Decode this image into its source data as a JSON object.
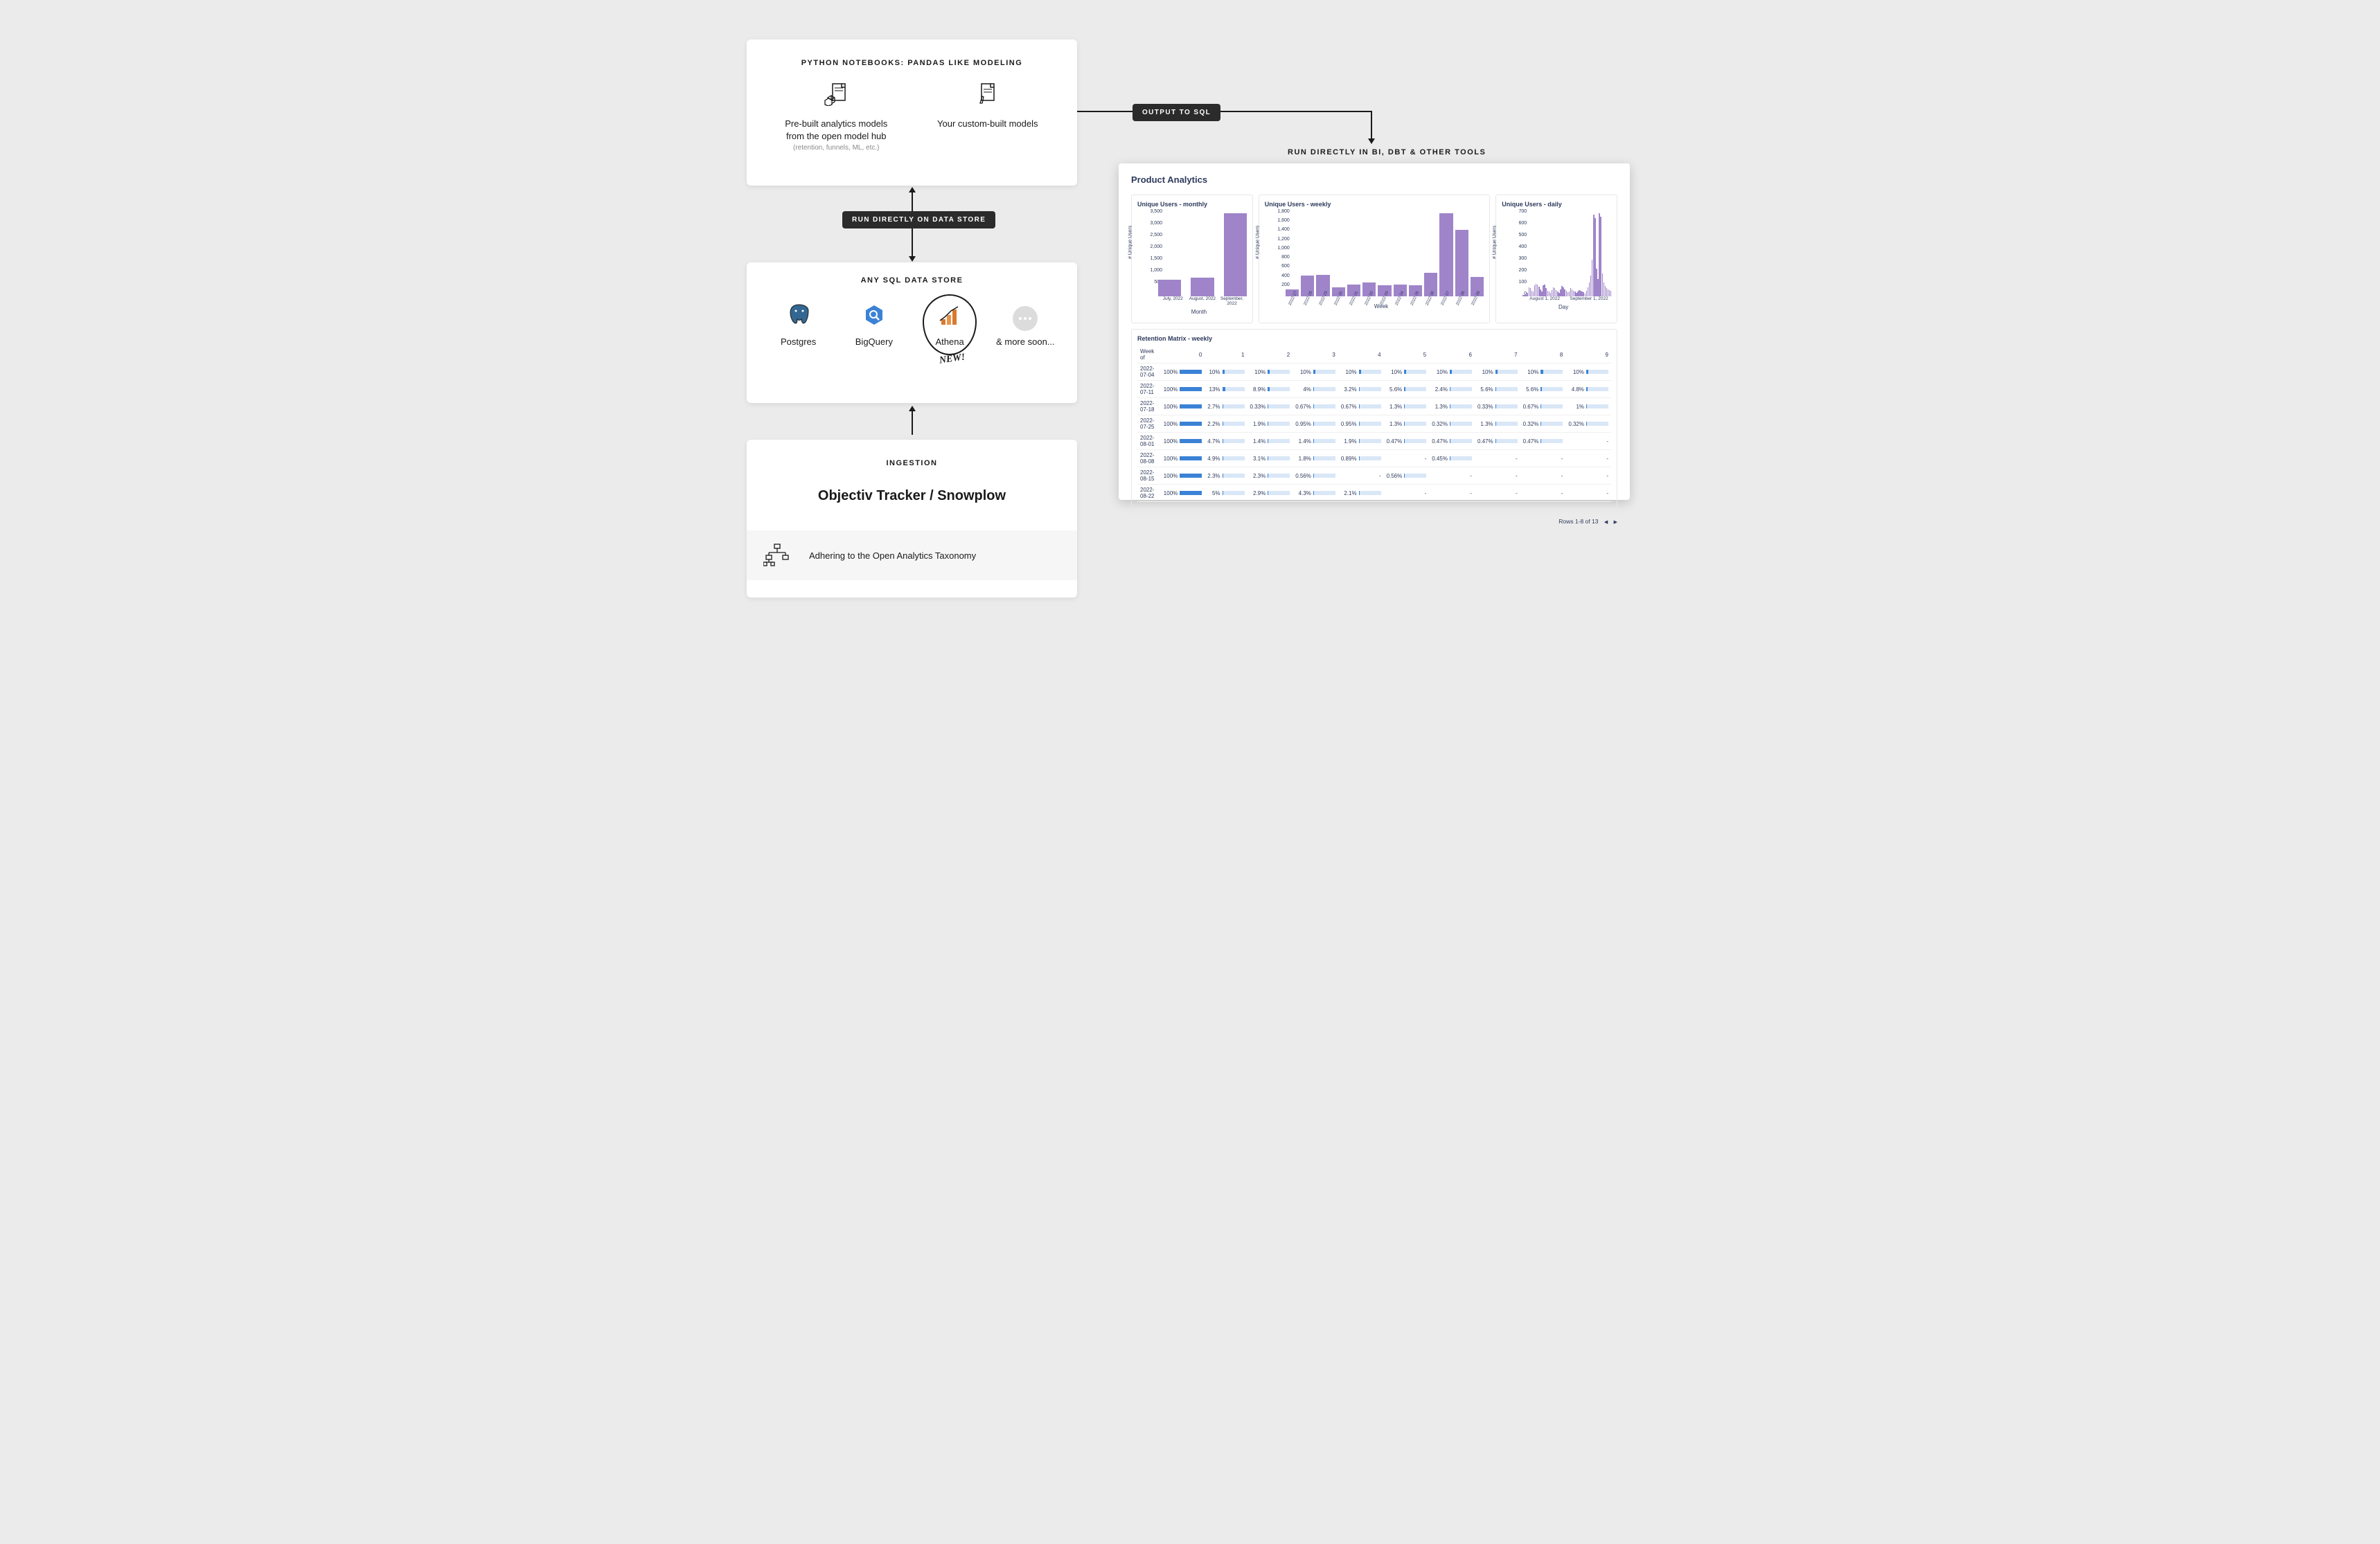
{
  "colors": {
    "bg": "#ebebeb",
    "card": "#ffffff",
    "text": "#1a1a1a",
    "muted": "#8a8a8a",
    "pill_bg": "#2b2b2b",
    "dash_text": "#2e3a5c",
    "bar_purple": "#9f84c9",
    "ret_bg": "#d9e7f7",
    "ret_fg": "#3b82d6",
    "border": "#e7e7e7",
    "athena_orange": "#d97a2e",
    "bq_blue": "#3b82d6",
    "pg_blue": "#336791"
  },
  "labels": {
    "output_to_sql": "OUTPUT TO SQL",
    "run_on_store": "RUN DIRECTLY ON DATA STORE",
    "run_in_bi": "RUN DIRECTLY IN BI, DBT & OTHER TOOLS"
  },
  "notebooks": {
    "title": "PYTHON NOTEBOOKS: PANDAS LIKE MODELING",
    "prebuilt_line1": "Pre-built analytics models",
    "prebuilt_line2": "from the open model hub",
    "prebuilt_sub": "(retention, funnels, ML, etc.)",
    "custom": "Your custom-built models"
  },
  "stores": {
    "title": "ANY SQL DATA STORE",
    "items": [
      "Postgres",
      "BigQuery",
      "Athena",
      "& more soon..."
    ],
    "new_badge": "NEW!"
  },
  "ingestion": {
    "title": "INGESTION",
    "tracker": "Objectiv Tracker / Snowplow",
    "taxonomy": "Adhering to the Open Analytics Taxonomy"
  },
  "dashboard": {
    "title": "Product Analytics",
    "rows_info": "Rows 1-8 of 13",
    "charts": {
      "monthly": {
        "title": "Unique Users - monthly",
        "y_label": "# Unique Users",
        "y_ticks": [
          "3,500",
          "3,000",
          "2,500",
          "2,000",
          "1,500",
          "1,000",
          "500",
          "0"
        ],
        "categories": [
          "July, 2022",
          "August, 2022",
          "September, 2022"
        ],
        "values": [
          750,
          820,
          3700
        ],
        "ymax": 3700,
        "axis_title": "Month",
        "color": "#9f84c9",
        "bar_gap": 14
      },
      "weekly": {
        "title": "Unique Users - weekly",
        "y_label": "# Unique Users",
        "y_ticks": [
          "1,800",
          "1,600",
          "1,400",
          "1,200",
          "1,000",
          "800",
          "600",
          "400",
          "200",
          "0"
        ],
        "categories": [
          "2022-27",
          "2022-28",
          "2022-29",
          "2022-30",
          "2022-31",
          "2022-32",
          "2022-33",
          "2022-34",
          "2022-35",
          "2022-36",
          "2022-37",
          "2022-38",
          "2022-39"
        ],
        "values": [
          160,
          460,
          480,
          200,
          260,
          310,
          250,
          270,
          250,
          530,
          1850,
          1480,
          430
        ],
        "ymax": 1850,
        "axis_title": "Week",
        "color": "#9f84c9",
        "bar_gap": 3
      },
      "daily": {
        "title": "Unique Users - daily",
        "y_label": "# Unique Users",
        "y_ticks": [
          "700",
          "600",
          "500",
          "400",
          "300",
          "200",
          "100",
          "0"
        ],
        "categories_maj": [
          "August 1, 2022",
          "September 1, 2022"
        ],
        "values": [
          10,
          12,
          15,
          30,
          80,
          70,
          50,
          40,
          95,
          110,
          100,
          85,
          60,
          40,
          95,
          100,
          70,
          50,
          40,
          30,
          55,
          80,
          70,
          55,
          40,
          30,
          60,
          90,
          80,
          60,
          50,
          35,
          45,
          70,
          60,
          50,
          45,
          30,
          40,
          55,
          50,
          45,
          35,
          25,
          50,
          80,
          120,
          180,
          320,
          710,
          680,
          240,
          150,
          720,
          690,
          200,
          120,
          90,
          70,
          60,
          55,
          50
        ],
        "ymax": 720,
        "axis_title": "Day",
        "color": "#9f84c9",
        "bar_gap": 0.6
      }
    },
    "retention": {
      "title": "Retention Matrix - weekly",
      "header": [
        "Week of",
        "0",
        "1",
        "2",
        "3",
        "4",
        "5",
        "6",
        "7",
        "8",
        "9"
      ],
      "rows": [
        {
          "week": "2022-07-04",
          "cells": [
            {
              "v": "100%",
              "p": 100
            },
            {
              "v": "10%",
              "p": 10
            },
            {
              "v": "10%",
              "p": 10
            },
            {
              "v": "10%",
              "p": 10
            },
            {
              "v": "10%",
              "p": 10
            },
            {
              "v": "10%",
              "p": 10
            },
            {
              "v": "10%",
              "p": 10
            },
            {
              "v": "10%",
              "p": 10
            },
            {
              "v": "10%",
              "p": 10
            },
            {
              "v": "10%",
              "p": 10
            }
          ]
        },
        {
          "week": "2022-07-11",
          "cells": [
            {
              "v": "100%",
              "p": 100
            },
            {
              "v": "13%",
              "p": 13
            },
            {
              "v": "8.9%",
              "p": 8.9
            },
            {
              "v": "4%",
              "p": 4
            },
            {
              "v": "3.2%",
              "p": 3.2
            },
            {
              "v": "5.6%",
              "p": 5.6
            },
            {
              "v": "2.4%",
              "p": 2.4
            },
            {
              "v": "5.6%",
              "p": 5.6
            },
            {
              "v": "5.6%",
              "p": 5.6
            },
            {
              "v": "4.8%",
              "p": 4.8
            }
          ]
        },
        {
          "week": "2022-07-18",
          "cells": [
            {
              "v": "100%",
              "p": 100
            },
            {
              "v": "2.7%",
              "p": 2.7
            },
            {
              "v": "0.33%",
              "p": 0.33
            },
            {
              "v": "0.67%",
              "p": 0.67
            },
            {
              "v": "0.67%",
              "p": 0.67
            },
            {
              "v": "1.3%",
              "p": 1.3
            },
            {
              "v": "1.3%",
              "p": 1.3
            },
            {
              "v": "0.33%",
              "p": 0.33
            },
            {
              "v": "0.67%",
              "p": 0.67
            },
            {
              "v": "1%",
              "p": 1
            }
          ]
        },
        {
          "week": "2022-07-25",
          "cells": [
            {
              "v": "100%",
              "p": 100
            },
            {
              "v": "2.2%",
              "p": 2.2
            },
            {
              "v": "1.9%",
              "p": 1.9
            },
            {
              "v": "0.95%",
              "p": 0.95
            },
            {
              "v": "0.95%",
              "p": 0.95
            },
            {
              "v": "1.3%",
              "p": 1.3
            },
            {
              "v": "0.32%",
              "p": 0.32
            },
            {
              "v": "1.3%",
              "p": 1.3
            },
            {
              "v": "0.32%",
              "p": 0.32
            },
            {
              "v": "0.32%",
              "p": 0.32
            }
          ]
        },
        {
          "week": "2022-08-01",
          "cells": [
            {
              "v": "100%",
              "p": 100
            },
            {
              "v": "4.7%",
              "p": 4.7
            },
            {
              "v": "1.4%",
              "p": 1.4
            },
            {
              "v": "1.4%",
              "p": 1.4
            },
            {
              "v": "1.9%",
              "p": 1.9
            },
            {
              "v": "0.47%",
              "p": 0.47
            },
            {
              "v": "0.47%",
              "p": 0.47
            },
            {
              "v": "0.47%",
              "p": 0.47
            },
            {
              "v": "0.47%",
              "p": 0.47
            },
            {
              "v": "-",
              "p": null
            }
          ]
        },
        {
          "week": "2022-08-08",
          "cells": [
            {
              "v": "100%",
              "p": 100
            },
            {
              "v": "4.9%",
              "p": 4.9
            },
            {
              "v": "3.1%",
              "p": 3.1
            },
            {
              "v": "1.8%",
              "p": 1.8
            },
            {
              "v": "0.89%",
              "p": 0.89
            },
            {
              "v": "-",
              "p": null
            },
            {
              "v": "0.45%",
              "p": 0.45
            },
            {
              "v": "-",
              "p": null
            },
            {
              "v": "-",
              "p": null
            },
            {
              "v": "-",
              "p": null
            }
          ]
        },
        {
          "week": "2022-08-15",
          "cells": [
            {
              "v": "100%",
              "p": 100
            },
            {
              "v": "2.3%",
              "p": 2.3
            },
            {
              "v": "2.3%",
              "p": 2.3
            },
            {
              "v": "0.56%",
              "p": 0.56
            },
            {
              "v": "-",
              "p": null
            },
            {
              "v": "0.56%",
              "p": 0.56
            },
            {
              "v": "-",
              "p": null
            },
            {
              "v": "-",
              "p": null
            },
            {
              "v": "-",
              "p": null
            },
            {
              "v": "-",
              "p": null
            }
          ]
        },
        {
          "week": "2022-08-22",
          "cells": [
            {
              "v": "100%",
              "p": 100
            },
            {
              "v": "5%",
              "p": 5
            },
            {
              "v": "2.9%",
              "p": 2.9
            },
            {
              "v": "4.3%",
              "p": 4.3
            },
            {
              "v": "2.1%",
              "p": 2.1
            },
            {
              "v": "-",
              "p": null
            },
            {
              "v": "-",
              "p": null
            },
            {
              "v": "-",
              "p": null
            },
            {
              "v": "-",
              "p": null
            },
            {
              "v": "-",
              "p": null
            }
          ]
        }
      ]
    }
  }
}
